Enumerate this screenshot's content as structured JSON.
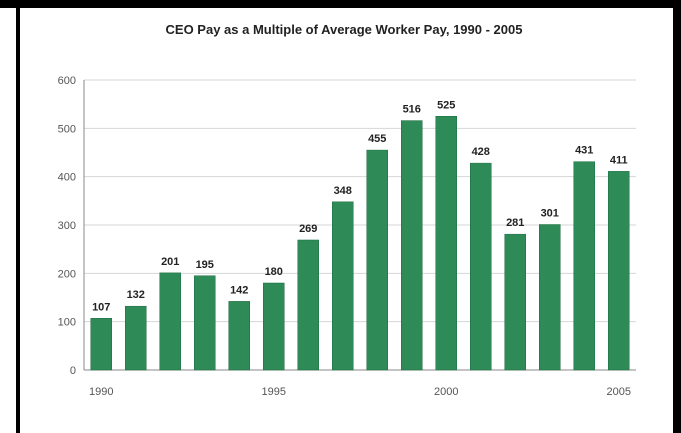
{
  "chart_data": {
    "type": "bar",
    "title": "CEO Pay as a Multiple of Average Worker Pay, 1990 - 2005",
    "xlabel": "",
    "ylabel": "",
    "categories": [
      "1990",
      "1991",
      "1992",
      "1993",
      "1994",
      "1995",
      "1996",
      "1997",
      "1998",
      "1999",
      "2000",
      "2001",
      "2002",
      "2003",
      "2004",
      "2005"
    ],
    "x_tick_labels": [
      "1990",
      "",
      "",
      "",
      "",
      "1995",
      "",
      "",
      "",
      "",
      "2000",
      "",
      "",
      "",
      "",
      "2005"
    ],
    "values": [
      107,
      132,
      201,
      195,
      142,
      180,
      269,
      348,
      455,
      516,
      525,
      428,
      281,
      301,
      431,
      411
    ],
    "ylim": [
      0,
      600
    ],
    "yticks": [
      0,
      100,
      200,
      300,
      400,
      500,
      600
    ],
    "grid": true,
    "legend": "none",
    "colors": {
      "bar": "#2e8b57",
      "bar_edge": "#1f6b40",
      "grid": "#d6d6d6",
      "axis": "#888888",
      "border": "#000000"
    }
  }
}
